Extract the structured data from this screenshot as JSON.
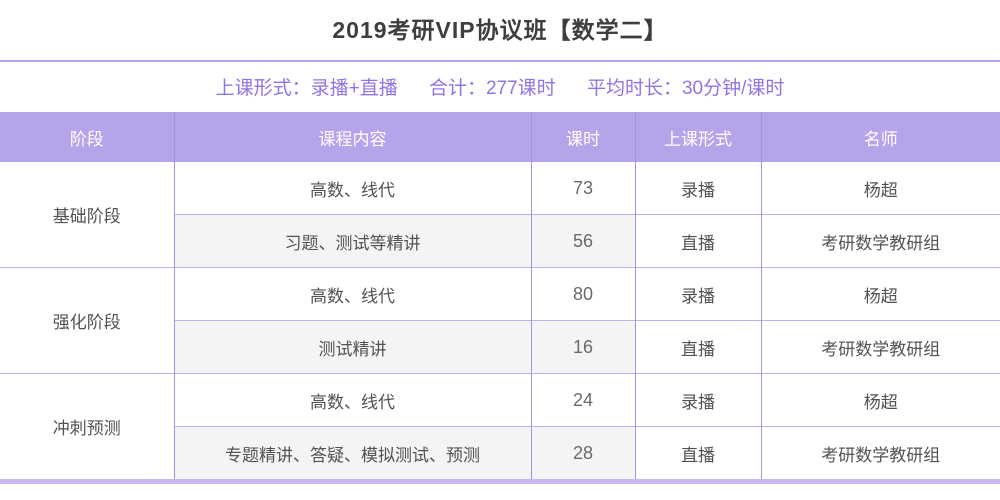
{
  "title": "2019考研VIP协议班【数学二】",
  "summary": {
    "format": "上课形式：录播+直播",
    "total": "合计：277课时",
    "avg_duration": "平均时长：30分钟/课时"
  },
  "table": {
    "headers": {
      "stage": "阶段",
      "content": "课程内容",
      "hours": "课时",
      "format": "上课形式",
      "teacher": "名师"
    },
    "groups": [
      {
        "stage": "基础阶段",
        "rows": [
          {
            "content": "高数、线代",
            "hours": "73",
            "format": "录播",
            "teacher": "杨超",
            "shaded": false
          },
          {
            "content": "习题、测试等精讲",
            "hours": "56",
            "format": "直播",
            "teacher": "考研数学教研组",
            "shaded": true
          }
        ]
      },
      {
        "stage": "强化阶段",
        "rows": [
          {
            "content": "高数、线代",
            "hours": "80",
            "format": "录播",
            "teacher": "杨超",
            "shaded": false
          },
          {
            "content": "测试精讲",
            "hours": "16",
            "format": "直播",
            "teacher": "考研数学教研组",
            "shaded": true
          }
        ]
      },
      {
        "stage": "冲刺预测",
        "rows": [
          {
            "content": "高数、线代",
            "hours": "24",
            "format": "录播",
            "teacher": "杨超",
            "shaded": false
          },
          {
            "content": "专题精讲、答疑、模拟测试、预测",
            "hours": "28",
            "format": "直播",
            "teacher": "考研数学教研组",
            "shaded": true
          }
        ]
      }
    ]
  },
  "colors": {
    "header_bg": "#b6a4ea",
    "vertical_border": "#a78fe6",
    "horizontal_border": "#c2b1f0",
    "shaded_row_bg": "#f4f4f5",
    "accent_text": "#8f74e6",
    "title_text": "#3e3e3e",
    "footer_bar": "#c8b8f1"
  }
}
